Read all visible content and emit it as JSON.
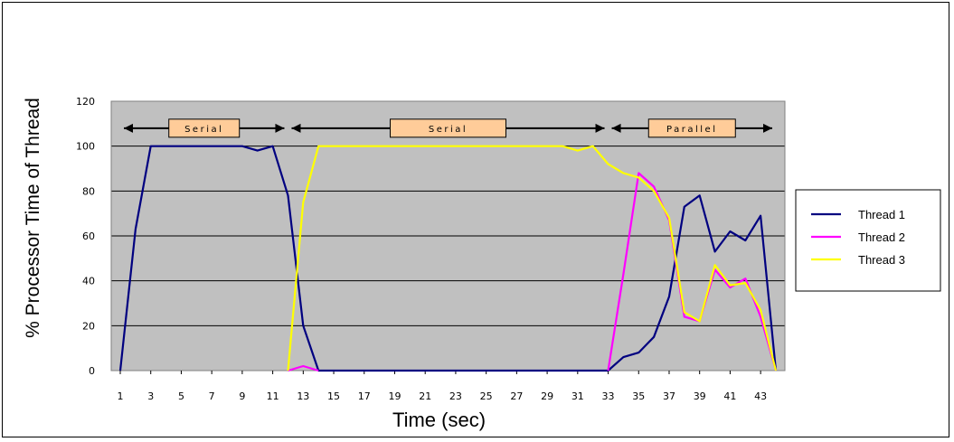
{
  "chart_data": {
    "type": "line",
    "title": "",
    "xlabel": "Time (sec)",
    "ylabel": "% Processor Time of Thread",
    "x": [
      1,
      2,
      3,
      4,
      5,
      6,
      7,
      8,
      9,
      10,
      11,
      12,
      13,
      14,
      15,
      16,
      17,
      18,
      19,
      20,
      21,
      22,
      23,
      24,
      25,
      26,
      27,
      28,
      29,
      30,
      31,
      32,
      33,
      34,
      35,
      36,
      37,
      38,
      39,
      40,
      41,
      42,
      43,
      44
    ],
    "x_tick_labels": [
      "1",
      "3",
      "5",
      "7",
      "9",
      "11",
      "13",
      "15",
      "17",
      "19",
      "21",
      "23",
      "25",
      "27",
      "29",
      "31",
      "33",
      "35",
      "37",
      "39",
      "41",
      "43"
    ],
    "ylim": [
      0,
      120
    ],
    "y_ticks": [
      "0",
      "20",
      "40",
      "60",
      "80",
      "100",
      "120"
    ],
    "grid": "horizontal",
    "plot_background": "#c0c0c0",
    "legend_position": "right",
    "series": [
      {
        "name": "Thread 1",
        "color": "#000080",
        "values": [
          0,
          63,
          100,
          100,
          100,
          100,
          100,
          100,
          100,
          98,
          100,
          78,
          20,
          0,
          0,
          0,
          0,
          0,
          0,
          0,
          0,
          0,
          0,
          0,
          0,
          0,
          0,
          0,
          0,
          0,
          0,
          0,
          0,
          6,
          8,
          15,
          33,
          73,
          78,
          53,
          62,
          58,
          69,
          0
        ]
      },
      {
        "name": "Thread 2",
        "color": "#ff00ff",
        "values": [
          null,
          null,
          null,
          null,
          null,
          null,
          null,
          null,
          null,
          null,
          null,
          0,
          2,
          0,
          null,
          null,
          null,
          null,
          null,
          null,
          null,
          null,
          null,
          null,
          null,
          null,
          null,
          null,
          null,
          null,
          null,
          null,
          0,
          43,
          88,
          82,
          67,
          24,
          22,
          45,
          37,
          41,
          24,
          0
        ]
      },
      {
        "name": "Thread 3",
        "color": "#ffff00",
        "values": [
          null,
          null,
          null,
          null,
          null,
          null,
          null,
          null,
          null,
          null,
          null,
          0,
          75,
          100,
          100,
          100,
          100,
          100,
          100,
          100,
          100,
          100,
          100,
          100,
          100,
          100,
          100,
          100,
          100,
          100,
          98,
          100,
          92,
          88,
          86,
          80,
          68,
          26,
          22,
          47,
          38,
          39,
          27,
          0
        ]
      }
    ],
    "annotations": [
      {
        "text": "Serial",
        "from": 1,
        "to": 12,
        "y": 110
      },
      {
        "text": "Serial",
        "from": 12,
        "to": 33,
        "y": 110
      },
      {
        "text": "Parallel",
        "from": 33,
        "to": 44,
        "y": 110
      }
    ]
  }
}
